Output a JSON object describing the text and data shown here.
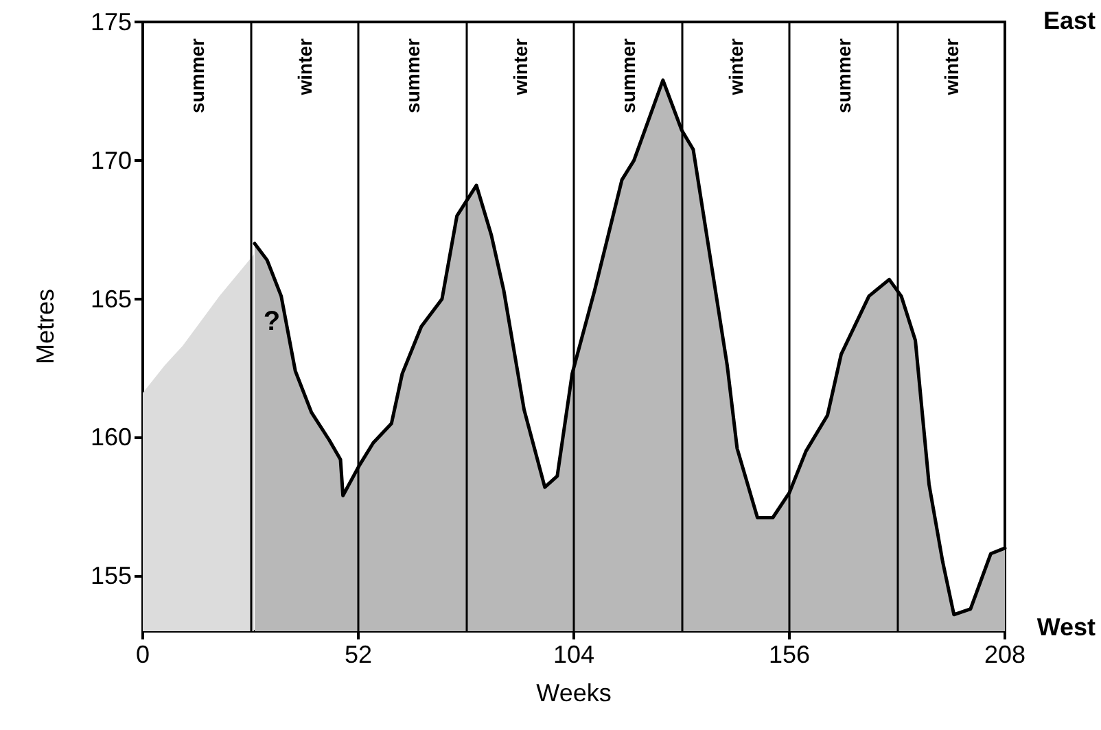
{
  "chart_data": {
    "type": "area",
    "xlabel": "Weeks",
    "ylabel": "Metres",
    "xlim": [
      0,
      208
    ],
    "xticks": [
      0,
      52,
      104,
      156,
      208
    ],
    "ylim": [
      153,
      175
    ],
    "yticks": [
      155,
      160,
      165,
      170,
      175
    ],
    "marker": "none",
    "line_style": "solid",
    "series": [
      {
        "color": "#dcdcdc",
        "line_style": "none",
        "x": [
          0,
          5.3,
          9.6,
          18.5,
          26.8
        ],
        "values": [
          161.6,
          162.6,
          163.3,
          165.1,
          166.6
        ]
      },
      {
        "color": "#b8b8b8",
        "x": [
          27,
          30,
          33.4,
          36.8,
          40.7,
          45,
          47.7,
          48.3,
          52.3,
          55.6,
          60,
          62.6,
          67.2,
          72.2,
          75.8,
          80.5,
          84.1,
          87.1,
          92,
          97,
          100,
          103.6,
          109,
          115.6,
          118.5,
          125.5,
          130,
          132.8,
          136.8,
          141,
          143.4,
          148.3,
          152,
          156,
          160,
          165.2,
          168.5,
          175.2,
          180.1,
          183,
          186.4,
          189.7,
          193,
          195.7,
          199.7,
          204.6,
          208
        ],
        "values": [
          167,
          166.4,
          165.1,
          162.4,
          160.9,
          159.9,
          159.2,
          157.9,
          159,
          159.8,
          160.5,
          162.3,
          164,
          165,
          168,
          169.1,
          167.3,
          165.3,
          161,
          158.2,
          158.6,
          162.3,
          165.3,
          169.3,
          170,
          172.9,
          171.1,
          170.4,
          166.6,
          162.6,
          159.6,
          157.1,
          157.1,
          158,
          159.5,
          160.8,
          163,
          165.1,
          165.7,
          165.1,
          163.5,
          158.3,
          155.5,
          153.6,
          153.8,
          155.8,
          156
        ]
      }
    ],
    "ref_lines": [
      {
        "axis": "x",
        "value": 26
      },
      {
        "axis": "x",
        "value": 52
      },
      {
        "axis": "x",
        "value": 78
      },
      {
        "axis": "x",
        "value": 104
      },
      {
        "axis": "x",
        "value": 130
      },
      {
        "axis": "x",
        "value": 156
      },
      {
        "axis": "x",
        "value": 182
      }
    ],
    "annotations": [
      "?",
      "East",
      "West",
      "summer",
      "winter",
      "summer",
      "winter",
      "summer",
      "winter",
      "summer",
      "winter"
    ]
  }
}
